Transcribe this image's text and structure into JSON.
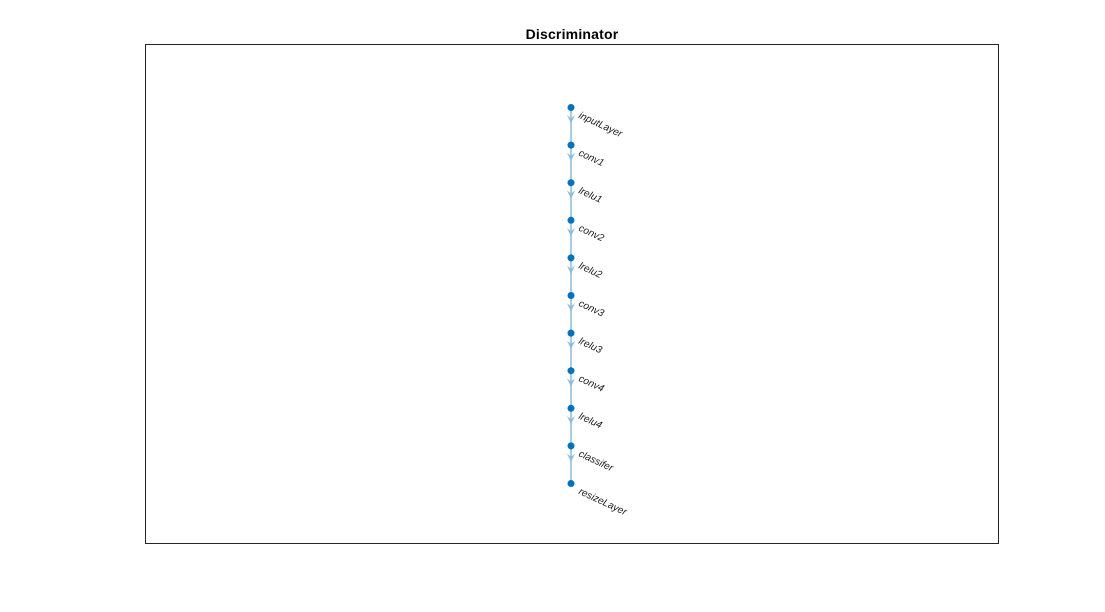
{
  "diagram": {
    "title": "Discriminator",
    "type": "layer-graph",
    "direction": "top-down",
    "nodes": [
      "inputLayer",
      "conv1",
      "lrelu1",
      "conv2",
      "lrelu2",
      "conv3",
      "lrelu3",
      "conv4",
      "lrelu4",
      "classifer",
      "resizeLayer"
    ],
    "edges": [
      [
        "inputLayer",
        "conv1"
      ],
      [
        "conv1",
        "lrelu1"
      ],
      [
        "lrelu1",
        "conv2"
      ],
      [
        "conv2",
        "lrelu2"
      ],
      [
        "lrelu2",
        "conv3"
      ],
      [
        "conv3",
        "lrelu3"
      ],
      [
        "lrelu3",
        "conv4"
      ],
      [
        "conv4",
        "lrelu4"
      ],
      [
        "lrelu4",
        "classifer"
      ],
      [
        "classifer",
        "resizeLayer"
      ]
    ],
    "colors": {
      "node": "#0072BD",
      "edge": "#A8CBE6",
      "arrow": "#8CBBDE",
      "label": "#1a1a1a",
      "axes_border": "#262626",
      "title": "#000000",
      "background": "#ffffff"
    }
  }
}
